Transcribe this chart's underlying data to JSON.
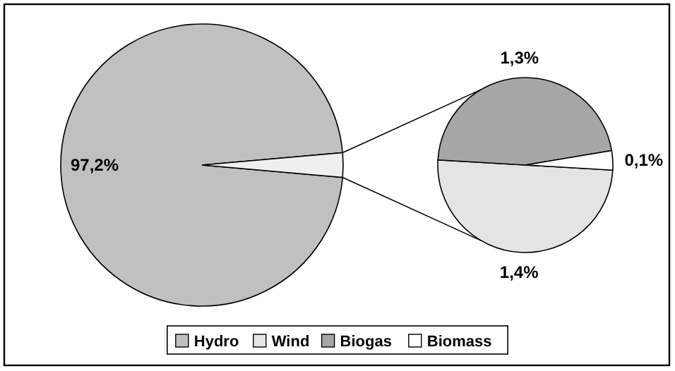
{
  "chart_data": [
    {
      "type": "pie",
      "categories": [
        "Hydro",
        null
      ],
      "values": [
        97.2,
        2.8
      ],
      "colors": [
        "#c0c0c0",
        "#efefef"
      ],
      "value_labels": [
        "97,2%",
        null
      ],
      "legend": "bottom"
    },
    {
      "type": "pie",
      "categories": [
        "Wind",
        "Biogas",
        "Biomass"
      ],
      "values": [
        1.4,
        1.3,
        0.1
      ],
      "colors": [
        "#e4e4e4",
        "#a6a6a6",
        "#ffffff"
      ],
      "value_labels": [
        "1,4%",
        "1,3%",
        "0,1%"
      ],
      "legend": "bottom"
    }
  ]
}
